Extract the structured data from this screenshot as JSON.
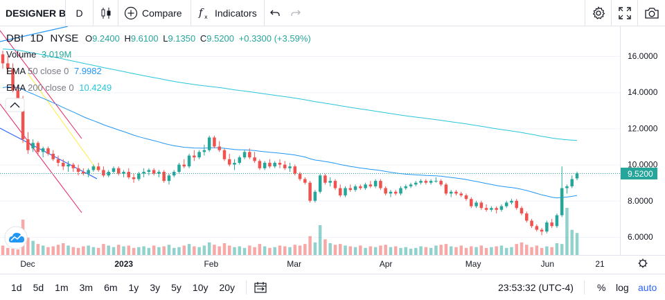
{
  "toolbar": {
    "symbol": "DESIGNER B",
    "interval": "D",
    "compare_label": "Compare",
    "indicators_label": "Indicators"
  },
  "legend": {
    "ticker": "DBI",
    "interval": "1D",
    "exchange": "NYSE",
    "o_label": "O",
    "o_value": "9.2400",
    "h_label": "H",
    "h_value": "9.6100",
    "l_label": "L",
    "l_value": "9.1350",
    "c_label": "C",
    "c_value": "9.5200",
    "change": "+0.3300 (+3.59%)",
    "volume_label": "Volume",
    "volume_value": "3.019M",
    "ema50_label": "EMA",
    "ema50_params": "50 close 0",
    "ema50_value": "7.9982",
    "ema200_label": "EMA",
    "ema200_params": "200 close 0",
    "ema200_value": "10.4249"
  },
  "time_axis": {
    "labels": [
      "Dec",
      "2023",
      "Feb",
      "Mar",
      "Apr",
      "May",
      "Jun",
      "21"
    ]
  },
  "bottom": {
    "ranges": [
      "1d",
      "5d",
      "1m",
      "3m",
      "6m",
      "1y",
      "3y",
      "5y",
      "10y",
      "20y"
    ],
    "clock": "23:53:32 (UTC-4)",
    "percent_label": "%",
    "log_label": "log",
    "auto_label": "auto"
  },
  "colors": {
    "up": "#26a69a",
    "down": "#ef5350",
    "ema50": "#2196f3",
    "ema200": "#26c6da",
    "accent": "#2962ff"
  },
  "chart_data": {
    "type": "candlestick",
    "y_ticks": [
      "16.0000",
      "14.0000",
      "12.0000",
      "10.0000",
      "8.0000",
      "6.0000"
    ],
    "ylim": [
      5.3,
      17.1
    ],
    "last_price": "9.5200",
    "last_value": 9.52,
    "candles": [
      [
        16.1,
        16.3,
        15.3,
        15.6
      ],
      [
        15.6,
        16.0,
        15.0,
        15.3
      ],
      [
        15.3,
        15.6,
        14.0,
        14.1
      ],
      [
        14.1,
        14.4,
        13.4,
        13.6
      ],
      [
        13.5,
        13.8,
        11.2,
        11.4
      ],
      [
        11.4,
        11.8,
        10.6,
        10.8
      ],
      [
        10.9,
        11.4,
        10.7,
        11.2
      ],
      [
        11.2,
        11.3,
        10.5,
        10.7
      ],
      [
        10.7,
        11.0,
        10.4,
        10.9
      ],
      [
        10.9,
        11.0,
        10.5,
        10.6
      ],
      [
        10.6,
        10.8,
        10.2,
        10.3
      ],
      [
        10.3,
        10.5,
        9.9,
        10.1
      ],
      [
        10.1,
        10.3,
        9.7,
        9.9
      ],
      [
        9.9,
        10.2,
        9.6,
        10.0
      ],
      [
        10.0,
        10.1,
        9.6,
        9.8
      ],
      [
        9.8,
        10.0,
        9.4,
        9.6
      ],
      [
        9.6,
        9.8,
        9.4,
        9.5
      ],
      [
        9.5,
        9.8,
        9.3,
        9.7
      ],
      [
        9.7,
        10.0,
        9.6,
        9.9
      ],
      [
        9.9,
        10.1,
        9.6,
        9.7
      ],
      [
        9.7,
        9.9,
        9.3,
        9.4
      ],
      [
        9.4,
        9.7,
        9.3,
        9.6
      ],
      [
        9.6,
        9.9,
        9.5,
        9.8
      ],
      [
        9.8,
        9.9,
        9.4,
        9.5
      ],
      [
        9.5,
        9.7,
        9.3,
        9.6
      ],
      [
        9.6,
        9.8,
        9.2,
        9.3
      ],
      [
        9.3,
        9.5,
        9.0,
        9.2
      ],
      [
        9.2,
        9.6,
        9.1,
        9.5
      ],
      [
        9.5,
        9.8,
        9.3,
        9.6
      ],
      [
        9.6,
        9.8,
        9.4,
        9.7
      ],
      [
        9.7,
        9.8,
        9.4,
        9.5
      ],
      [
        9.5,
        9.7,
        9.3,
        9.6
      ],
      [
        9.6,
        9.7,
        9.0,
        9.1
      ],
      [
        9.1,
        9.5,
        8.9,
        9.4
      ],
      [
        9.4,
        9.7,
        9.3,
        9.6
      ],
      [
        9.6,
        10.1,
        9.5,
        10.0
      ],
      [
        10.0,
        10.3,
        9.8,
        9.9
      ],
      [
        9.9,
        10.6,
        9.8,
        10.5
      ],
      [
        10.5,
        10.8,
        10.2,
        10.4
      ],
      [
        10.4,
        10.8,
        10.3,
        10.7
      ],
      [
        10.7,
        11.1,
        10.5,
        10.8
      ],
      [
        10.8,
        11.6,
        10.7,
        11.5
      ],
      [
        11.5,
        11.6,
        10.9,
        11.0
      ],
      [
        11.0,
        11.3,
        10.7,
        10.8
      ],
      [
        10.8,
        10.9,
        10.2,
        10.3
      ],
      [
        10.3,
        10.6,
        9.9,
        10.0
      ],
      [
        10.0,
        10.3,
        9.7,
        10.1
      ],
      [
        10.1,
        10.5,
        10.0,
        10.4
      ],
      [
        10.4,
        10.8,
        10.3,
        10.7
      ],
      [
        10.7,
        10.9,
        10.3,
        10.4
      ],
      [
        10.4,
        10.7,
        10.1,
        10.2
      ],
      [
        10.2,
        10.3,
        9.7,
        9.8
      ],
      [
        9.8,
        10.2,
        9.7,
        10.1
      ],
      [
        10.1,
        10.3,
        9.8,
        9.9
      ],
      [
        9.9,
        10.2,
        9.8,
        10.1
      ],
      [
        10.1,
        10.3,
        9.8,
        10.0
      ],
      [
        10.0,
        10.2,
        9.7,
        9.8
      ],
      [
        9.8,
        10.1,
        9.6,
        9.9
      ],
      [
        9.9,
        10.0,
        9.4,
        9.5
      ],
      [
        9.5,
        9.6,
        9.1,
        9.2
      ],
      [
        9.2,
        9.3,
        8.9,
        9.0
      ],
      [
        9.0,
        9.1,
        7.9,
        8.0
      ],
      [
        8.0,
        8.6,
        7.9,
        8.5
      ],
      [
        8.5,
        9.5,
        8.4,
        9.4
      ],
      [
        9.4,
        9.5,
        8.9,
        9.0
      ],
      [
        9.0,
        9.3,
        8.8,
        9.1
      ],
      [
        9.1,
        9.2,
        8.6,
        8.7
      ],
      [
        8.7,
        8.9,
        8.2,
        8.3
      ],
      [
        8.3,
        8.8,
        8.2,
        8.7
      ],
      [
        8.7,
        8.9,
        8.5,
        8.6
      ],
      [
        8.6,
        8.9,
        8.5,
        8.8
      ],
      [
        8.8,
        8.9,
        8.6,
        8.7
      ],
      [
        8.7,
        9.0,
        8.6,
        8.9
      ],
      [
        8.9,
        9.1,
        8.7,
        8.8
      ],
      [
        8.8,
        9.2,
        8.7,
        9.1
      ],
      [
        9.1,
        9.2,
        8.6,
        8.7
      ],
      [
        8.7,
        8.8,
        8.3,
        8.4
      ],
      [
        8.4,
        8.6,
        8.2,
        8.5
      ],
      [
        8.5,
        8.6,
        8.3,
        8.4
      ],
      [
        8.4,
        8.8,
        8.3,
        8.7
      ],
      [
        8.7,
        8.9,
        8.6,
        8.8
      ],
      [
        8.8,
        9.0,
        8.7,
        8.9
      ],
      [
        8.9,
        9.1,
        8.8,
        9.0
      ],
      [
        9.0,
        9.2,
        8.9,
        9.1
      ],
      [
        9.1,
        9.2,
        8.9,
        9.0
      ],
      [
        9.0,
        9.2,
        8.9,
        9.1
      ],
      [
        9.1,
        9.3,
        9.0,
        9.1
      ],
      [
        9.1,
        9.2,
        8.8,
        8.9
      ],
      [
        8.9,
        9.0,
        8.3,
        8.4
      ],
      [
        8.4,
        8.6,
        8.2,
        8.5
      ],
      [
        8.5,
        8.6,
        8.3,
        8.4
      ],
      [
        8.4,
        8.5,
        8.2,
        8.3
      ],
      [
        8.3,
        8.4,
        8.0,
        8.1
      ],
      [
        8.1,
        8.2,
        7.6,
        7.7
      ],
      [
        7.7,
        8.0,
        7.6,
        7.9
      ],
      [
        7.9,
        8.0,
        7.5,
        7.6
      ],
      [
        7.6,
        7.8,
        7.4,
        7.5
      ],
      [
        7.5,
        7.7,
        7.4,
        7.6
      ],
      [
        7.6,
        7.7,
        7.3,
        7.5
      ],
      [
        7.5,
        7.8,
        7.4,
        7.7
      ],
      [
        7.7,
        8.0,
        7.6,
        7.9
      ],
      [
        7.9,
        8.1,
        7.8,
        8.0
      ],
      [
        8.0,
        8.1,
        7.5,
        7.6
      ],
      [
        7.6,
        7.7,
        7.2,
        7.3
      ],
      [
        7.3,
        7.4,
        6.8,
        6.9
      ],
      [
        6.9,
        7.0,
        6.5,
        6.6
      ],
      [
        6.6,
        6.7,
        6.3,
        6.4
      ],
      [
        6.4,
        6.5,
        6.1,
        6.3
      ],
      [
        6.3,
        6.9,
        6.2,
        6.8
      ],
      [
        6.8,
        7.0,
        6.5,
        6.6
      ],
      [
        6.6,
        7.3,
        6.5,
        7.2
      ],
      [
        7.2,
        9.9,
        7.1,
        8.7
      ],
      [
        8.7,
        8.9,
        8.4,
        8.8
      ],
      [
        8.8,
        9.4,
        8.7,
        9.2
      ],
      [
        9.24,
        9.61,
        9.135,
        9.52
      ]
    ],
    "volumes": [
      12,
      9,
      8,
      7,
      45,
      22,
      18,
      14,
      12,
      10,
      11,
      13,
      15,
      12,
      10,
      9,
      11,
      12,
      10,
      9,
      14,
      12,
      10,
      13,
      11,
      12,
      9,
      10,
      11,
      9,
      12,
      10,
      11,
      13,
      9,
      10,
      12,
      14,
      11,
      10,
      12,
      16,
      13,
      11,
      15,
      12,
      10,
      11,
      9,
      12,
      10,
      14,
      11,
      9,
      10,
      12,
      11,
      10,
      13,
      12,
      14,
      24,
      16,
      38,
      20,
      15,
      13,
      14,
      12,
      11,
      10,
      12,
      9,
      11,
      10,
      12,
      13,
      10,
      11,
      9,
      10,
      8,
      9,
      11,
      10,
      9,
      12,
      13,
      14,
      11,
      10,
      12,
      9,
      11,
      10,
      12,
      9,
      10,
      11,
      12,
      9,
      10,
      14,
      16,
      13,
      10,
      12,
      9,
      11,
      10,
      15,
      14,
      60,
      32,
      28,
      24
    ]
  }
}
